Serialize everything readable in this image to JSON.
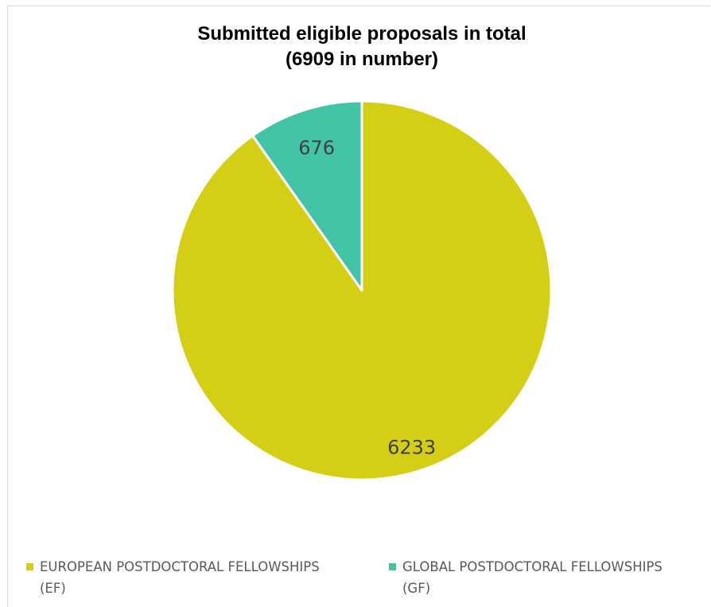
{
  "chart_data": {
    "type": "pie",
    "title": "Submitted eligible proposals in total",
    "subtitle": "(6909 in number)",
    "slices": [
      {
        "label": "EUROPEAN POSTDOCTORAL FELLOWSHIPS (EF)",
        "legend_line1": "EUROPEAN POSTDOCTORAL FELLOWSHIPS",
        "legend_line2": "(EF)",
        "value": 6233,
        "data_label": "6233",
        "color": "#d4ce14"
      },
      {
        "label": "GLOBAL POSTDOCTORAL FELLOWSHIPS (GF)",
        "legend_line1": "GLOBAL POSTDOCTORAL FELLOWSHIPS",
        "legend_line2": "(GF)",
        "value": 676,
        "data_label": "676",
        "color": "#44c4a6"
      }
    ],
    "legend_position": "bottom",
    "start_angle": "12 o'clock",
    "direction": "clockwise"
  }
}
